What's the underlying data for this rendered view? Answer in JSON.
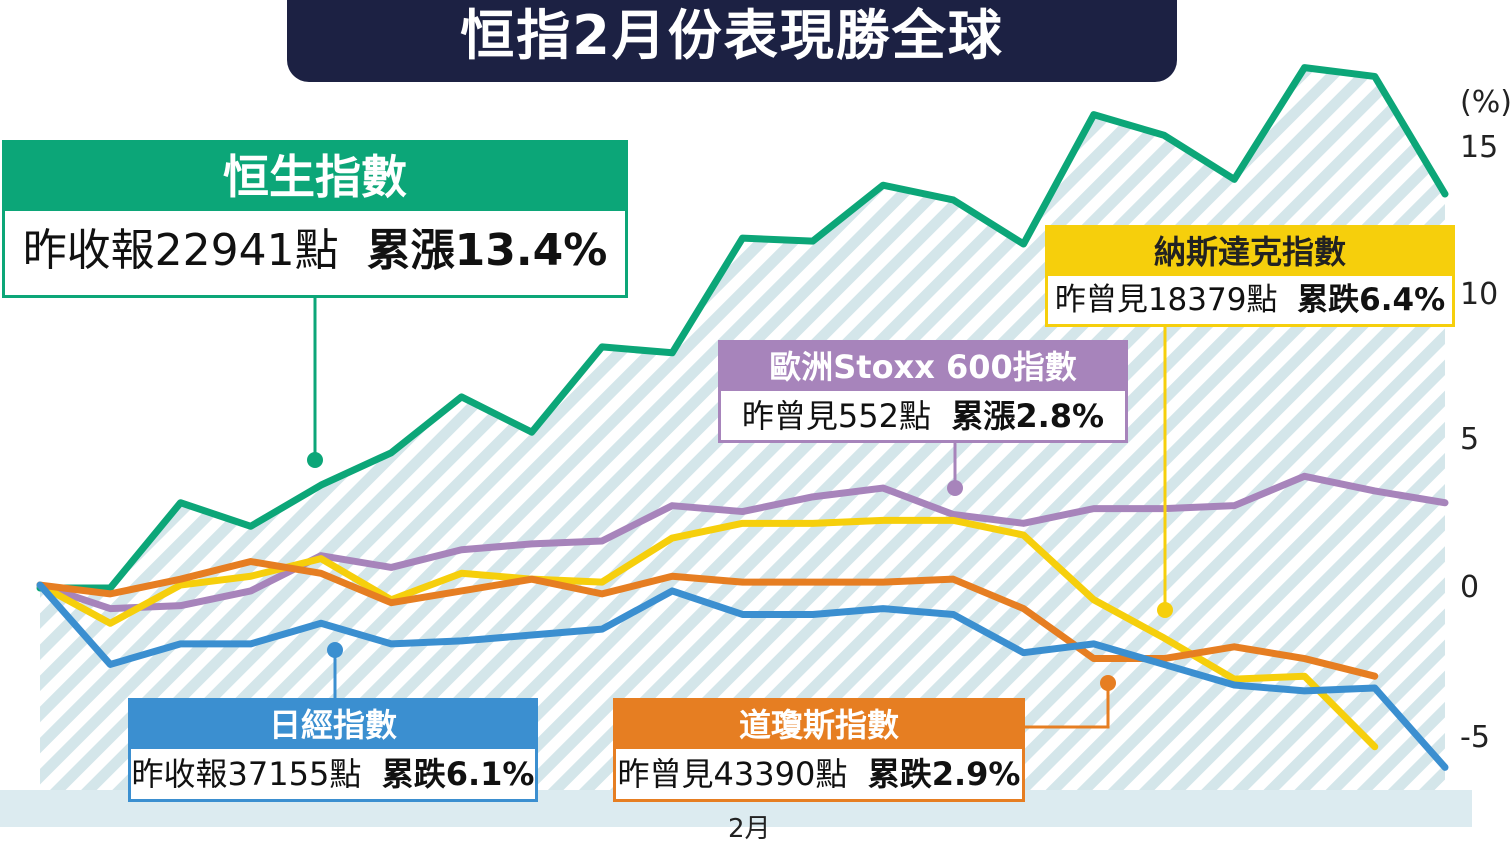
{
  "title": "恒指2月份表現勝全球",
  "chart_data": {
    "type": "line",
    "xlabel": "2月",
    "ylabel": "(%)",
    "y_ticks": [
      "15",
      "10",
      "5",
      "0",
      "-5"
    ],
    "ylim": [
      -8,
      19
    ],
    "grid": false,
    "series": [
      {
        "name": "恒生指數",
        "color": "#0ca678",
        "values": [
          0,
          0,
          2.9,
          2.1,
          3.5,
          4.6,
          6.5,
          5.3,
          8.2,
          8.0,
          11.9,
          11.8,
          13.7,
          13.2,
          11.7,
          16.1,
          15.4,
          13.9,
          17.7,
          17.4,
          13.4
        ]
      },
      {
        "name": "歐洲Stoxx 600指數",
        "color": "#a784bb",
        "values": [
          0.1,
          -0.7,
          -0.6,
          -0.1,
          1.1,
          0.7,
          1.3,
          1.5,
          1.6,
          2.8,
          2.6,
          3.1,
          3.4,
          2.5,
          2.2,
          2.7,
          2.7,
          2.8,
          3.8,
          3.3,
          2.9
        ]
      },
      {
        "name": "納斯達克指數",
        "color": "#f6cf0c",
        "values": [
          0.1,
          -1.2,
          0.1,
          0.4,
          1.0,
          -0.4,
          0.5,
          0.3,
          0.2,
          1.7,
          2.2,
          2.2,
          2.3,
          2.3,
          1.8,
          -0.4,
          -1.7,
          -3.1,
          -3.0,
          -5.4
        ]
      },
      {
        "name": "道瓊斯指數",
        "color": "#e67e22",
        "values": [
          0.1,
          -0.2,
          0.3,
          0.9,
          0.5,
          -0.5,
          -0.1,
          0.3,
          -0.2,
          0.4,
          0.2,
          0.2,
          0.2,
          0.3,
          -0.7,
          -2.4,
          -2.4,
          -2.0,
          -2.4,
          -3.0
        ]
      },
      {
        "name": "日經指數",
        "color": "#3b8fd0",
        "values": [
          0.1,
          -2.6,
          -1.9,
          -1.9,
          -1.2,
          -1.9,
          -1.8,
          -1.6,
          -1.4,
          -0.1,
          -0.9,
          -0.9,
          -0.7,
          -0.9,
          -2.2,
          -1.9,
          -2.6,
          -3.3,
          -3.5,
          -3.4,
          -6.1
        ]
      }
    ]
  },
  "labels": {
    "hsi": {
      "name": "恒生指數",
      "text": "昨收報22941點",
      "change": "累漲13.4%"
    },
    "stoxx": {
      "name": "歐洲Stoxx  600指數",
      "text": "昨曾見552點",
      "change": "累漲2.8%"
    },
    "nasdaq": {
      "name": "納斯達克指數",
      "text": "昨曾見18379點",
      "change": "累跌6.4%"
    },
    "nikkei": {
      "name": "日經指數",
      "text": "昨收報37155點",
      "change": "累跌6.1%"
    },
    "dow": {
      "name": "道瓊斯指數",
      "text": "昨曾見43390點",
      "change": "累跌2.9%"
    }
  }
}
